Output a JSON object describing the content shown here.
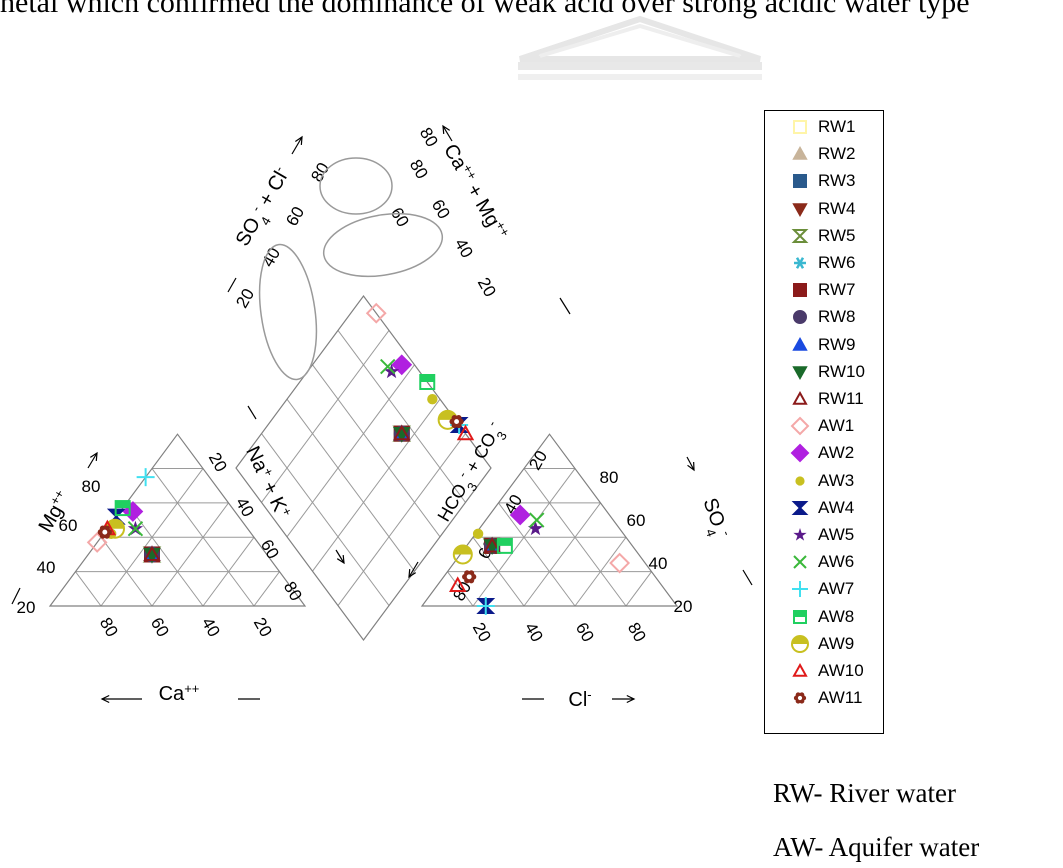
{
  "caption": "hetal which confirmed the dominance of weak acid over strong acidic water type",
  "chart_data": {
    "type": "scatter",
    "title": "",
    "cation_triangle": {
      "axes": [
        "Mg++",
        "Na+ + K+",
        "Ca++"
      ],
      "ticks": [
        "20",
        "40",
        "60",
        "80"
      ]
    },
    "anion_triangle": {
      "axes": [
        "HCO3- + CO3-",
        "SO4-",
        "Cl-"
      ],
      "ticks": [
        "20",
        "40",
        "60",
        "80"
      ]
    },
    "diamond": {
      "axes": [
        "SO4- + Cl-",
        "Ca++ + Mg++"
      ],
      "ticks": [
        "20",
        "40",
        "60",
        "80"
      ]
    },
    "series": [
      {
        "name": "RW1",
        "color": "#fff5a8",
        "marker": "square-open",
        "ca": 45,
        "mg": 30,
        "na": 25,
        "hco3": 55,
        "so4": 35,
        "cl": 10
      },
      {
        "name": "RW2",
        "color": "#c8b49a",
        "marker": "triangle",
        "ca": 45,
        "mg": 30,
        "na": 25,
        "hco3": 55,
        "so4": 35,
        "cl": 10
      },
      {
        "name": "RW3",
        "color": "#2a5a8c",
        "marker": "square",
        "ca": 45,
        "mg": 30,
        "na": 25,
        "hco3": 55,
        "so4": 35,
        "cl": 10
      },
      {
        "name": "RW4",
        "color": "#8b2a1a",
        "marker": "triangle-down",
        "ca": 45,
        "mg": 30,
        "na": 25,
        "hco3": 55,
        "so4": 35,
        "cl": 10
      },
      {
        "name": "RW5",
        "color": "#6b8e3a",
        "marker": "hourglass-open",
        "ca": 45,
        "mg": 30,
        "na": 25,
        "hco3": 55,
        "so4": 35,
        "cl": 10
      },
      {
        "name": "RW6",
        "color": "#3ab8d0",
        "marker": "star6",
        "ca": 45,
        "mg": 30,
        "na": 25,
        "hco3": 55,
        "so4": 35,
        "cl": 10
      },
      {
        "name": "RW7",
        "color": "#8b1a1a",
        "marker": "square",
        "ca": 45,
        "mg": 30,
        "na": 25,
        "hco3": 55,
        "so4": 35,
        "cl": 10
      },
      {
        "name": "RW8",
        "color": "#4a3a6a",
        "marker": "circle",
        "ca": 45,
        "mg": 30,
        "na": 25,
        "hco3": 55,
        "so4": 35,
        "cl": 10
      },
      {
        "name": "RW9",
        "color": "#1a4ae0",
        "marker": "triangle",
        "ca": 45,
        "mg": 30,
        "na": 25,
        "hco3": 55,
        "so4": 35,
        "cl": 10
      },
      {
        "name": "RW10",
        "color": "#1a6a2a",
        "marker": "triangle-down",
        "ca": 45,
        "mg": 30,
        "na": 25,
        "hco3": 55,
        "so4": 35,
        "cl": 10
      },
      {
        "name": "RW11",
        "color": "#8b1a1a",
        "marker": "triangle-open",
        "ca": 45,
        "mg": 30,
        "na": 25,
        "hco3": 55,
        "so4": 35,
        "cl": 10
      },
      {
        "name": "AW1",
        "color": "#f4a8a8",
        "marker": "diamond-open",
        "ca": 63,
        "mg": 37,
        "na": 0,
        "hco3": 10,
        "so4": 25,
        "cl": 65
      },
      {
        "name": "AW2",
        "color": "#b020e0",
        "marker": "diamond",
        "ca": 40,
        "mg": 55,
        "na": 5,
        "hco3": 35,
        "so4": 53,
        "cl": 12
      },
      {
        "name": "AW3",
        "color": "#c8c020",
        "marker": "circle-small",
        "ca": 55,
        "mg": 42,
        "na": 3,
        "hco3": 57,
        "so4": 42,
        "cl": 1
      },
      {
        "name": "AW4",
        "color": "#0a1a8a",
        "marker": "hourglass",
        "ca": 48,
        "mg": 52,
        "na": 0,
        "hco3": 75,
        "so4": 0,
        "cl": 25
      },
      {
        "name": "AW5",
        "color": "#5a1a8a",
        "marker": "star",
        "ca": 44,
        "mg": 45,
        "na": 11,
        "hco3": 33,
        "so4": 45,
        "cl": 22
      },
      {
        "name": "AW6",
        "color": "#3ab83a",
        "marker": "cross",
        "ca": 44,
        "mg": 45,
        "na": 11,
        "hco3": 30,
        "so4": 50,
        "cl": 20
      },
      {
        "name": "AW7",
        "color": "#40e0f0",
        "marker": "plus",
        "ca": 25,
        "mg": 75,
        "na": 0,
        "hco3": 75,
        "so4": 0,
        "cl": 25
      },
      {
        "name": "AW8",
        "color": "#20d060",
        "marker": "square-split",
        "ca": 43,
        "mg": 57,
        "na": 0,
        "hco3": 50,
        "so4": 35,
        "cl": 15
      },
      {
        "name": "AW9",
        "color": "#c8c020",
        "marker": "circle-half",
        "ca": 52,
        "mg": 45,
        "na": 3,
        "hco3": 69,
        "so4": 30,
        "cl": 1
      },
      {
        "name": "AW10",
        "color": "#e01a1a",
        "marker": "triangle-open",
        "ca": 55,
        "mg": 45,
        "na": 0,
        "hco3": 80,
        "so4": 12,
        "cl": 8
      },
      {
        "name": "AW11",
        "color": "#8b2a1a",
        "marker": "flower",
        "ca": 57,
        "mg": 43,
        "na": 0,
        "hco3": 73,
        "so4": 17,
        "cl": 10
      }
    ],
    "legend_position": "right"
  },
  "notes": {
    "rw": "RW- River water",
    "aw": "AW- Aquifer water"
  }
}
